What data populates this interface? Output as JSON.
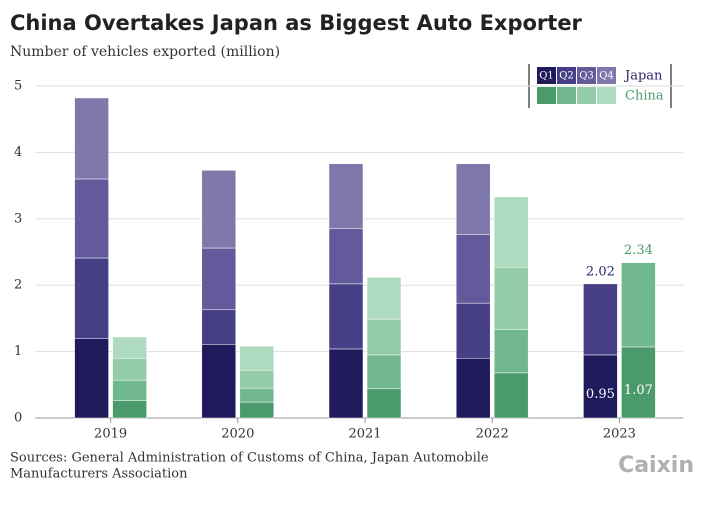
{
  "chart_data": {
    "type": "grouped-stacked-bar",
    "title": "China Overtakes Japan as Biggest Auto Exporter",
    "subtitle": "Number of vehicles exported (million)",
    "source": [
      "Sources: General Administration of Customs of China, Japan Automobile",
      "Manufacturers Association"
    ],
    "logo": "Caixin",
    "categories": [
      "2019",
      "2020",
      "2021",
      "2022",
      "2023"
    ],
    "ylim": [
      0,
      5
    ],
    "yticks": [
      0,
      1,
      2,
      3,
      4,
      5
    ],
    "grid": true,
    "legend_position": "top-right",
    "stacks": [
      {
        "name": "Japan",
        "label_color": "#2b2566",
        "total_labels": [
          null,
          null,
          null,
          null,
          2.02
        ],
        "series": [
          {
            "name": "Q1",
            "color": "#1f1a5c",
            "values": [
              1.2,
              1.11,
              1.04,
              0.9,
              0.95
            ],
            "value_labels": [
              null,
              null,
              null,
              null,
              "0.95"
            ]
          },
          {
            "name": "Q2",
            "color": "#463f86",
            "values": [
              1.21,
              0.52,
              0.98,
              0.83,
              1.07
            ]
          },
          {
            "name": "Q3",
            "color": "#625a9a",
            "values": [
              1.19,
              0.93,
              0.83,
              1.03,
              null
            ]
          },
          {
            "name": "Q4",
            "color": "#7f78ab",
            "values": [
              1.22,
              1.17,
              0.98,
              1.07,
              null
            ]
          }
        ]
      },
      {
        "name": "China",
        "label_color": "#4a9a6b",
        "total_labels": [
          null,
          null,
          null,
          null,
          2.34
        ],
        "series": [
          {
            "color": "#4a9a6b",
            "values": [
              0.26,
              0.24,
              0.44,
              0.68,
              1.07
            ],
            "value_labels": [
              null,
              null,
              null,
              null,
              "1.07"
            ]
          },
          {
            "color": "#72b88e",
            "values": [
              0.31,
              0.21,
              0.51,
              0.65,
              1.27
            ]
          },
          {
            "color": "#94cca9",
            "values": [
              0.33,
              0.27,
              0.54,
              0.94,
              null
            ]
          },
          {
            "color": "#aedabf",
            "values": [
              0.32,
              0.36,
              0.63,
              1.06,
              null
            ]
          }
        ]
      }
    ]
  }
}
